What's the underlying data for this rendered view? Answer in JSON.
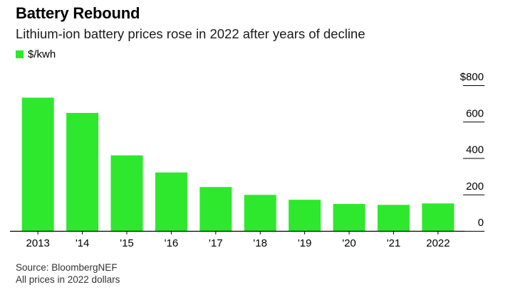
{
  "chart_data": {
    "type": "bar",
    "title": "Battery Rebound",
    "subtitle": "Lithium-ion battery prices rose in 2022 after years of decline",
    "legend": [
      {
        "label": "$/kwh",
        "color": "#2ee82e"
      }
    ],
    "categories": [
      "2013",
      "'14",
      "'15",
      "'16",
      "'17",
      "'18",
      "'19",
      "'20",
      "'21",
      "2022"
    ],
    "series": [
      {
        "name": "$/kwh",
        "values": [
          732,
          648,
          415,
          321,
          241,
          198,
          171,
          148,
          143,
          151
        ]
      }
    ],
    "y_ticks": [
      {
        "value": 800,
        "label": "$800"
      },
      {
        "value": 600,
        "label": "600"
      },
      {
        "value": 400,
        "label": "400"
      },
      {
        "value": 200,
        "label": "200"
      },
      {
        "value": 0,
        "label": "0"
      }
    ],
    "ylim": [
      0,
      800
    ],
    "xlabel": "",
    "ylabel": "",
    "y_axis_side": "right",
    "bar_color": "#2ee82e"
  },
  "footer": {
    "source": "Source: BloombergNEF",
    "note": "All prices in 2022 dollars"
  }
}
